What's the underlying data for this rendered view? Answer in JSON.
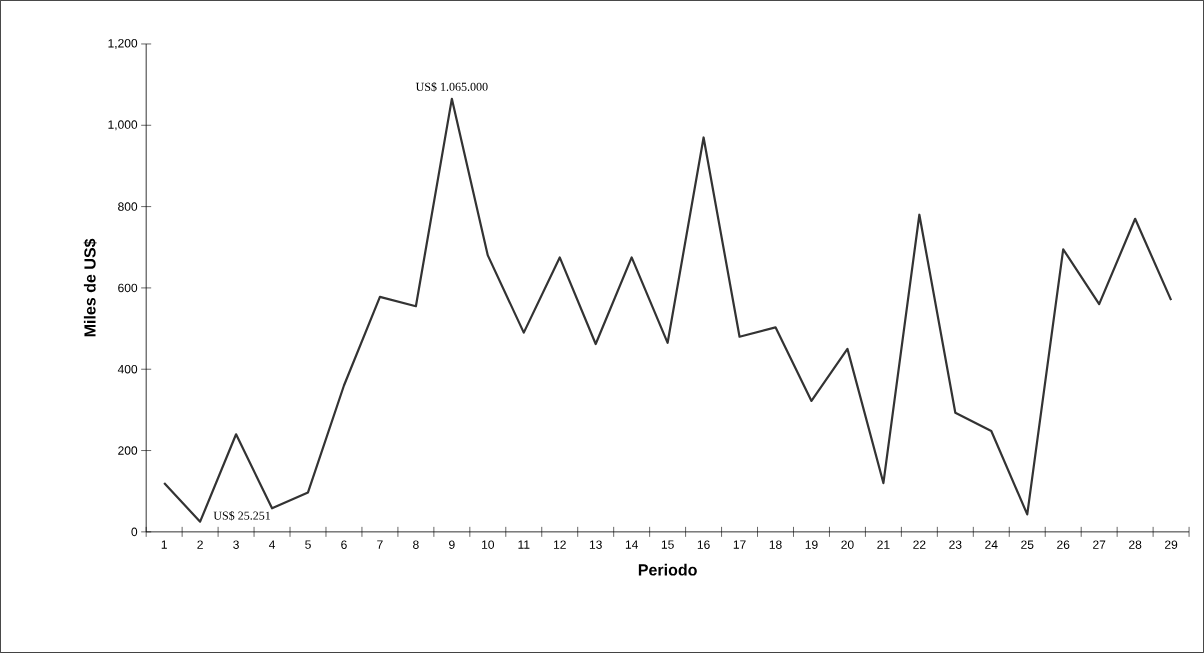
{
  "chart_data": {
    "type": "line",
    "xlabel": "Periodo",
    "ylabel": "Miles de US$",
    "categories": [
      "1",
      "2",
      "3",
      "4",
      "5",
      "6",
      "7",
      "8",
      "9",
      "10",
      "11",
      "12",
      "13",
      "14",
      "15",
      "16",
      "17",
      "18",
      "19",
      "20",
      "21",
      "22",
      "23",
      "24",
      "25",
      "26",
      "27",
      "28",
      "29"
    ],
    "values": [
      120,
      25,
      240,
      58,
      97,
      360,
      578,
      555,
      1065,
      680,
      490,
      675,
      462,
      675,
      465,
      970,
      480,
      503,
      322,
      450,
      120,
      780,
      293,
      248,
      43,
      695,
      560,
      770,
      570
    ],
    "color": "#333333",
    "ylim": [
      0,
      1200
    ],
    "yticks": [
      0,
      200,
      400,
      600,
      800,
      {
        "value": 1000,
        "label": "1,000"
      },
      {
        "value": 1200,
        "label": "1,200"
      }
    ],
    "grid": false,
    "marker": "none",
    "line_style": "solid",
    "annotations": [
      {
        "text": "US$ 1.065.000",
        "x": "9",
        "y": 1065
      },
      {
        "text": "US$ 25.251",
        "x": "2",
        "y": 25
      }
    ]
  }
}
